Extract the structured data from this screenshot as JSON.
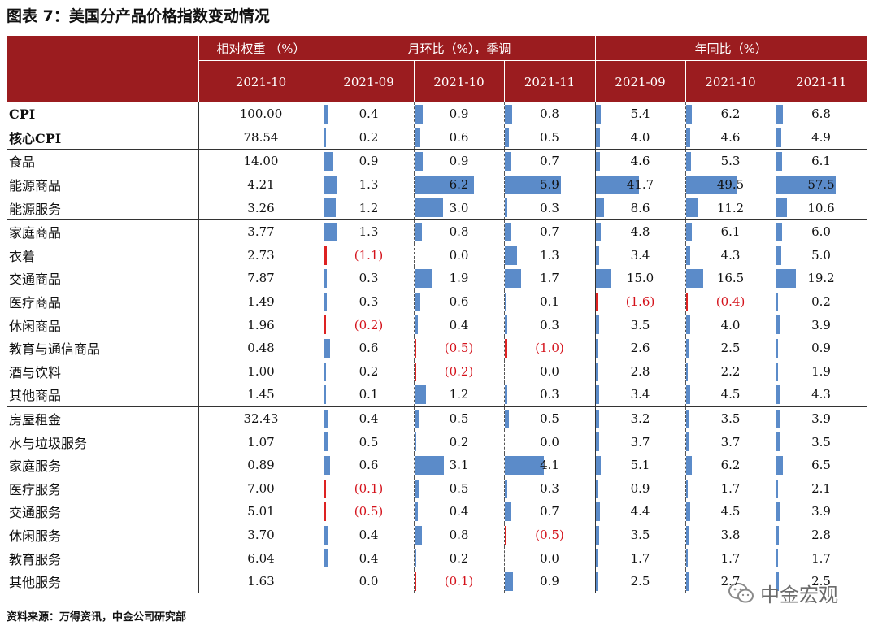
{
  "title": "图表 7：美国分产品价格指数变动情况",
  "source": "资料来源：万得资讯，中金公司研究部",
  "watermark": "中金宏观",
  "header": {
    "weight_label": "相对权重 （%）",
    "mom_label": "月环比（%），季调",
    "yoy_label": "年同比（%）",
    "weight_month": "2021-10",
    "mom_months": [
      "2021-09",
      "2021-10",
      "2021-11"
    ],
    "yoy_months": [
      "2021-09",
      "2021-10",
      "2021-11"
    ]
  },
  "colors": {
    "header_bg": "#9b1c1f",
    "bar": "#5b8bc9",
    "negative": "#d4111a"
  },
  "rows": [
    {
      "name": "CPI",
      "weight": "100.00",
      "mom": [
        "0.4",
        "0.9",
        "0.8"
      ],
      "yoy": [
        "5.4",
        "6.2",
        "6.8"
      ],
      "mom_v": [
        0.4,
        0.9,
        0.8
      ],
      "yoy_v": [
        5.4,
        6.2,
        6.8
      ]
    },
    {
      "name": "核心CPI",
      "weight": "78.54",
      "mom": [
        "0.2",
        "0.6",
        "0.5"
      ],
      "yoy": [
        "4.0",
        "4.6",
        "4.9"
      ],
      "mom_v": [
        0.2,
        0.6,
        0.5
      ],
      "yoy_v": [
        4.0,
        4.6,
        4.9
      ]
    },
    {
      "name": "食品",
      "weight": "14.00",
      "mom": [
        "0.9",
        "0.9",
        "0.7"
      ],
      "yoy": [
        "4.6",
        "5.3",
        "6.1"
      ],
      "mom_v": [
        0.9,
        0.9,
        0.7
      ],
      "yoy_v": [
        4.6,
        5.3,
        6.1
      ]
    },
    {
      "name": "能源商品",
      "weight": "4.21",
      "mom": [
        "1.3",
        "6.2",
        "5.9"
      ],
      "yoy": [
        "41.7",
        "49.5",
        "57.5"
      ],
      "mom_v": [
        1.3,
        6.2,
        5.9
      ],
      "yoy_v": [
        41.7,
        49.5,
        57.5
      ]
    },
    {
      "name": "能源服务",
      "weight": "3.26",
      "mom": [
        "1.2",
        "3.0",
        "0.3"
      ],
      "yoy": [
        "8.6",
        "11.2",
        "10.6"
      ],
      "mom_v": [
        1.2,
        3.0,
        0.3
      ],
      "yoy_v": [
        8.6,
        11.2,
        10.6
      ]
    },
    {
      "name": "家庭商品",
      "weight": "3.77",
      "mom": [
        "1.3",
        "0.8",
        "0.7"
      ],
      "yoy": [
        "4.8",
        "6.1",
        "6.0"
      ],
      "mom_v": [
        1.3,
        0.8,
        0.7
      ],
      "yoy_v": [
        4.8,
        6.1,
        6.0
      ]
    },
    {
      "name": "衣着",
      "weight": "2.73",
      "mom": [
        "(1.1)",
        "0.0",
        "1.3"
      ],
      "yoy": [
        "3.4",
        "4.3",
        "5.0"
      ],
      "mom_v": [
        -1.1,
        0.0,
        1.3
      ],
      "yoy_v": [
        3.4,
        4.3,
        5.0
      ]
    },
    {
      "name": "交通商品",
      "weight": "7.87",
      "mom": [
        "0.3",
        "1.9",
        "1.7"
      ],
      "yoy": [
        "15.0",
        "16.5",
        "19.2"
      ],
      "mom_v": [
        0.3,
        1.9,
        1.7
      ],
      "yoy_v": [
        15.0,
        16.5,
        19.2
      ]
    },
    {
      "name": "医疗商品",
      "weight": "1.49",
      "mom": [
        "0.3",
        "0.6",
        "0.1"
      ],
      "yoy": [
        "(1.6)",
        "(0.4)",
        "0.2"
      ],
      "mom_v": [
        0.3,
        0.6,
        0.1
      ],
      "yoy_v": [
        -1.6,
        -0.4,
        0.2
      ]
    },
    {
      "name": "休闲商品",
      "weight": "1.96",
      "mom": [
        "(0.2)",
        "0.4",
        "0.3"
      ],
      "yoy": [
        "3.5",
        "4.0",
        "3.9"
      ],
      "mom_v": [
        -0.2,
        0.4,
        0.3
      ],
      "yoy_v": [
        3.5,
        4.0,
        3.9
      ]
    },
    {
      "name": "教育与通信商品",
      "weight": "0.48",
      "mom": [
        "0.6",
        "(0.5)",
        "(1.0)"
      ],
      "yoy": [
        "2.6",
        "2.5",
        "0.9"
      ],
      "mom_v": [
        0.6,
        -0.5,
        -1.0
      ],
      "yoy_v": [
        2.6,
        2.5,
        0.9
      ]
    },
    {
      "name": "酒与饮料",
      "weight": "1.00",
      "mom": [
        "0.2",
        "(0.2)",
        "0.0"
      ],
      "yoy": [
        "2.8",
        "2.2",
        "1.9"
      ],
      "mom_v": [
        0.2,
        -0.2,
        0.0
      ],
      "yoy_v": [
        2.8,
        2.2,
        1.9
      ]
    },
    {
      "name": "其他商品",
      "weight": "1.45",
      "mom": [
        "0.1",
        "1.2",
        "0.3"
      ],
      "yoy": [
        "3.4",
        "4.5",
        "4.3"
      ],
      "mom_v": [
        0.1,
        1.2,
        0.3
      ],
      "yoy_v": [
        3.4,
        4.5,
        4.3
      ]
    },
    {
      "name": "房屋租金",
      "weight": "32.43",
      "mom": [
        "0.4",
        "0.5",
        "0.5"
      ],
      "yoy": [
        "3.2",
        "3.5",
        "3.9"
      ],
      "mom_v": [
        0.4,
        0.5,
        0.5
      ],
      "yoy_v": [
        3.2,
        3.5,
        3.9
      ]
    },
    {
      "name": "水与垃圾服务",
      "weight": "1.07",
      "mom": [
        "0.5",
        "0.2",
        "0.0"
      ],
      "yoy": [
        "3.7",
        "3.7",
        "3.5"
      ],
      "mom_v": [
        0.5,
        0.2,
        0.0
      ],
      "yoy_v": [
        3.7,
        3.7,
        3.5
      ]
    },
    {
      "name": "家庭服务",
      "weight": "0.89",
      "mom": [
        "0.6",
        "3.1",
        "4.1"
      ],
      "yoy": [
        "5.1",
        "6.2",
        "6.5"
      ],
      "mom_v": [
        0.6,
        3.1,
        4.1
      ],
      "yoy_v": [
        5.1,
        6.2,
        6.5
      ]
    },
    {
      "name": "医疗服务",
      "weight": "7.00",
      "mom": [
        "(0.1)",
        "0.5",
        "0.3"
      ],
      "yoy": [
        "0.9",
        "1.7",
        "2.1"
      ],
      "mom_v": [
        -0.1,
        0.5,
        0.3
      ],
      "yoy_v": [
        0.9,
        1.7,
        2.1
      ]
    },
    {
      "name": "交通服务",
      "weight": "5.01",
      "mom": [
        "(0.5)",
        "0.4",
        "0.7"
      ],
      "yoy": [
        "4.4",
        "4.5",
        "3.9"
      ],
      "mom_v": [
        -0.5,
        0.4,
        0.7
      ],
      "yoy_v": [
        4.4,
        4.5,
        3.9
      ]
    },
    {
      "name": "休闲服务",
      "weight": "3.70",
      "mom": [
        "0.4",
        "0.8",
        "(0.5)"
      ],
      "yoy": [
        "3.5",
        "3.8",
        "2.8"
      ],
      "mom_v": [
        0.4,
        0.8,
        -0.5
      ],
      "yoy_v": [
        3.5,
        3.8,
        2.8
      ]
    },
    {
      "name": "教育服务",
      "weight": "6.04",
      "mom": [
        "0.4",
        "0.2",
        "0.0"
      ],
      "yoy": [
        "1.7",
        "1.7",
        "1.7"
      ],
      "mom_v": [
        0.4,
        0.2,
        0.0
      ],
      "yoy_v": [
        1.7,
        1.7,
        1.7
      ]
    },
    {
      "name": "其他服务",
      "weight": "1.63",
      "mom": [
        "0.0",
        "(0.1)",
        "0.9"
      ],
      "yoy": [
        "2.5",
        "2.7",
        "2.5"
      ],
      "mom_v": [
        0.0,
        -0.1,
        0.9
      ],
      "yoy_v": [
        2.5,
        2.7,
        2.5
      ]
    }
  ]
}
